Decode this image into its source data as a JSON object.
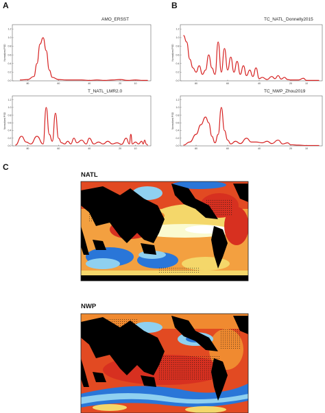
{
  "panel_labels": {
    "a": "A",
    "b": "B",
    "c": "C"
  },
  "y_axis_label": "Normalized PSD",
  "colors": {
    "line": "#d62020",
    "ocean_red": "#d73020",
    "ocean_orange": "#f08a30",
    "ocean_yellow": "#f7e98a",
    "ocean_blue": "#2a76d8",
    "ocean_lightblue": "#8fd0f0",
    "land": "#000000",
    "white": "#ffffff"
  },
  "chart_data": [
    {
      "type": "line",
      "title": "AMO_ERSST",
      "y_ticks": [
        "1.2",
        "1.0",
        "0.8",
        "0.6",
        "0.4",
        "0.2",
        "0.0"
      ],
      "x_ticks": [
        "80",
        "60",
        "40",
        "20",
        "10"
      ],
      "xlim": [
        90,
        0
      ],
      "ylim": [
        0,
        1.3
      ],
      "x": [
        85,
        80,
        76,
        74,
        72,
        70,
        68,
        66,
        64,
        60,
        55,
        50,
        45,
        40,
        35,
        30,
        25,
        20,
        15,
        10,
        5,
        2
      ],
      "y": [
        0.02,
        0.03,
        0.1,
        0.4,
        0.85,
        1.0,
        0.7,
        0.25,
        0.08,
        0.03,
        0.02,
        0.02,
        0.02,
        0.01,
        0.02,
        0.01,
        0.02,
        0.03,
        0.01,
        0.02,
        0.01,
        0.01
      ]
    },
    {
      "type": "line",
      "title": "T_NATL_LMR2.0",
      "y_ticks": [
        "1.2",
        "1.0",
        "0.8",
        "0.6",
        "0.4",
        "0.2",
        "0.0"
      ],
      "x_ticks": [
        "80",
        "60",
        "40",
        "20",
        "10"
      ],
      "xlim": [
        90,
        0
      ],
      "ylim": [
        0,
        1.3
      ],
      "x": [
        88,
        84,
        81,
        78,
        74,
        70,
        68,
        66,
        64,
        62,
        60,
        58,
        56,
        54,
        52,
        50,
        48,
        45,
        42,
        40,
        37,
        34,
        31,
        28,
        25,
        22,
        19,
        16,
        14,
        13,
        12,
        10,
        8,
        6,
        5,
        4,
        3,
        2
      ],
      "y": [
        0.02,
        0.25,
        0.1,
        0.05,
        0.25,
        0.05,
        1.0,
        0.3,
        0.12,
        0.85,
        0.2,
        0.08,
        0.05,
        0.12,
        0.05,
        0.2,
        0.08,
        0.15,
        0.05,
        0.2,
        0.05,
        0.1,
        0.05,
        0.12,
        0.05,
        0.08,
        0.04,
        0.2,
        0.05,
        0.3,
        0.05,
        0.1,
        0.05,
        0.12,
        0.05,
        0.15,
        0.05,
        0.02
      ]
    },
    {
      "type": "line",
      "title": "TC_NATL_Donnelly2015",
      "y_ticks": [
        "1.2",
        "1.0",
        "0.8",
        "0.6",
        "0.4",
        "0.2",
        "0.0"
      ],
      "x_ticks": [
        "80",
        "60",
        "40",
        "20",
        "10"
      ],
      "xlim": [
        90,
        0
      ],
      "ylim": [
        0,
        1.3
      ],
      "x": [
        88,
        86,
        84,
        82,
        80,
        78,
        76,
        74,
        72,
        70,
        68,
        66,
        64,
        62,
        60,
        58,
        56,
        54,
        52,
        50,
        48,
        46,
        44,
        42,
        40,
        38,
        35,
        32,
        30,
        28,
        26,
        24,
        22,
        20,
        18,
        15,
        12,
        10,
        5,
        2
      ],
      "y": [
        1.05,
        0.9,
        0.5,
        0.3,
        0.2,
        0.35,
        0.15,
        0.25,
        0.6,
        0.3,
        0.15,
        0.9,
        0.2,
        0.75,
        0.25,
        0.55,
        0.2,
        0.45,
        0.15,
        0.35,
        0.12,
        0.25,
        0.1,
        0.3,
        0.05,
        0.08,
        0.03,
        0.1,
        0.05,
        0.12,
        0.04,
        0.08,
        0.03,
        0.02,
        0.02,
        0.02,
        0.06,
        0.01,
        0.01,
        0.01
      ]
    },
    {
      "type": "line",
      "title": "TC_NWP_Zhou2019",
      "y_ticks": [
        "1.2",
        "1.0",
        "0.8",
        "0.6",
        "0.4",
        "0.2",
        "0.0"
      ],
      "x_ticks": [
        "80",
        "60",
        "40",
        "20",
        "10"
      ],
      "xlim": [
        90,
        0
      ],
      "ylim": [
        0,
        1.3
      ],
      "x": [
        88,
        84,
        80,
        77,
        74,
        72,
        70,
        68,
        66,
        64,
        62,
        60,
        58,
        55,
        52,
        48,
        45,
        42,
        38,
        35,
        32,
        28,
        25,
        22,
        20,
        15,
        10,
        5,
        2
      ],
      "y": [
        0.02,
        0.1,
        0.3,
        0.55,
        0.75,
        0.6,
        0.25,
        0.08,
        0.3,
        1.0,
        0.4,
        0.15,
        0.05,
        0.12,
        0.06,
        0.2,
        0.1,
        0.1,
        0.08,
        0.12,
        0.06,
        0.15,
        0.05,
        0.08,
        0.03,
        0.02,
        0.01,
        0.01,
        0.01
      ]
    }
  ],
  "maps": [
    {
      "title": "NATL",
      "description_key": "natl"
    },
    {
      "title": "NWP",
      "description_key": "nwp"
    }
  ]
}
